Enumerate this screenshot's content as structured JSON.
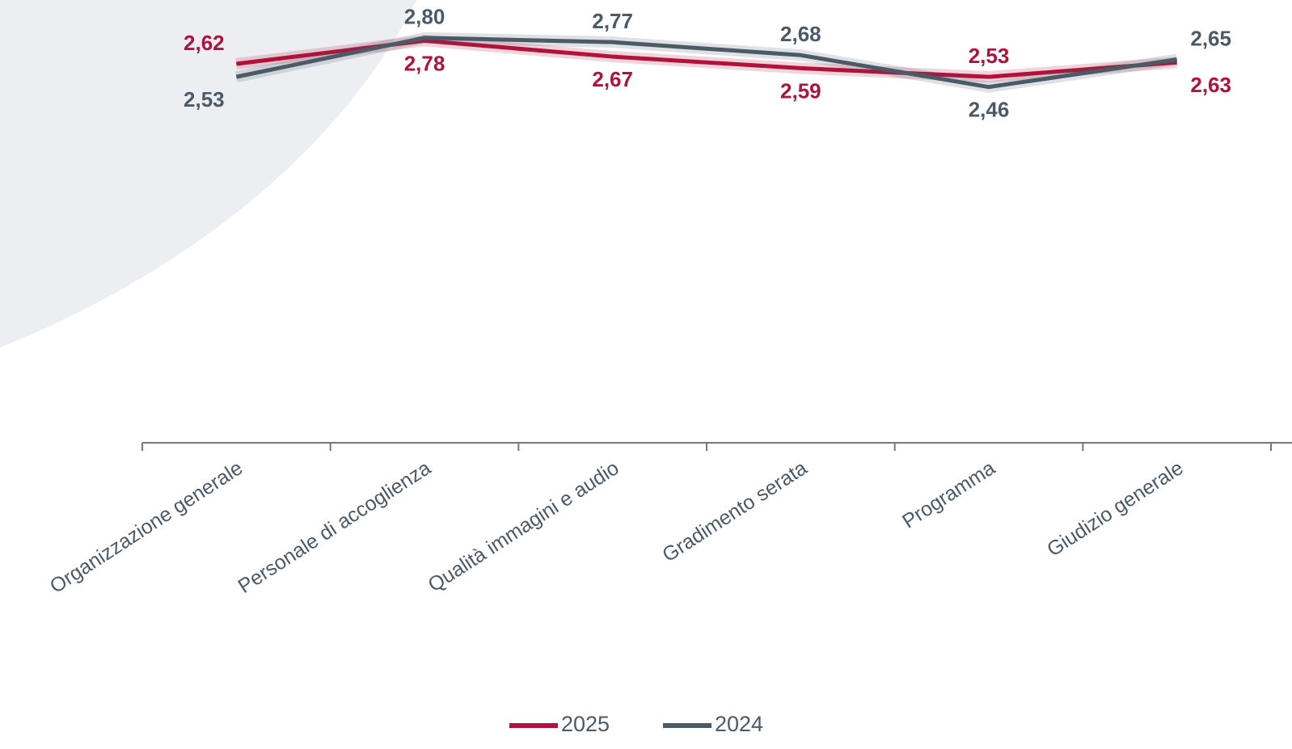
{
  "chart_data": {
    "type": "line",
    "categories": [
      "Organizzazione generale",
      "Personale di accoglienza",
      "Qualità immagini e audio",
      "Gradimento serata",
      "Programma",
      "Giudizio generale"
    ],
    "series": [
      {
        "name": "2025",
        "color": "#b0123a",
        "values": [
          2.62,
          2.78,
          2.67,
          2.59,
          2.53,
          2.63
        ],
        "value_labels": [
          "2,62",
          "2,78",
          "2,67",
          "2,59",
          "2,53",
          "2,63"
        ]
      },
      {
        "name": "2024",
        "color": "#4b5a67",
        "values": [
          2.53,
          2.8,
          2.77,
          2.68,
          2.46,
          2.65
        ],
        "value_labels": [
          "2,53",
          "2,80",
          "2,77",
          "2,68",
          "2,46",
          "2,65"
        ]
      }
    ],
    "ylim": [
      0,
      3
    ],
    "legend": "bottom"
  }
}
